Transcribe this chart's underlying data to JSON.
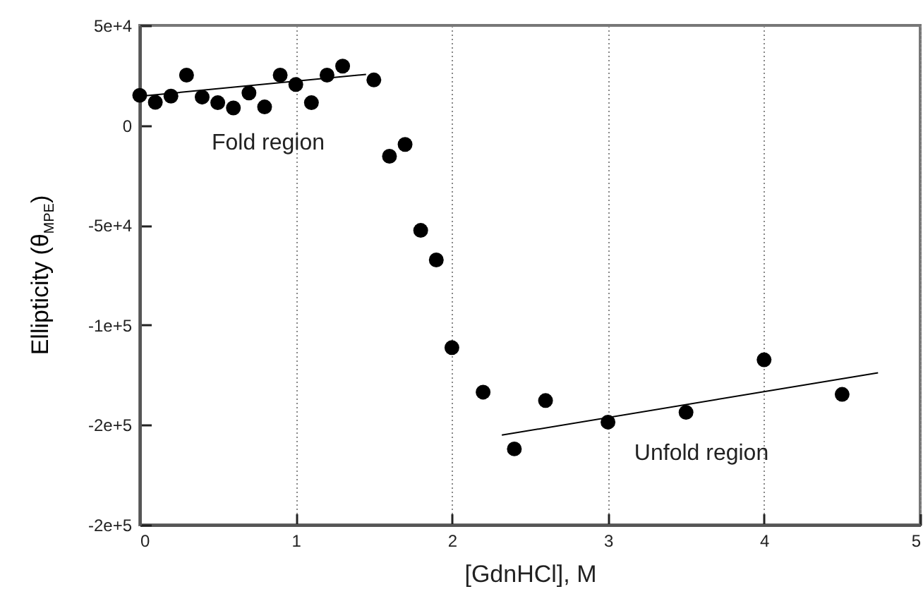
{
  "chart_data": {
    "type": "scatter",
    "xlabel": "[GdnHCl], M",
    "ylabel": "Ellipticity (θ$_{MPE}$)",
    "xlim": [
      0,
      5
    ],
    "xticks": [
      0,
      1,
      2,
      3,
      4,
      5
    ],
    "ylim": [
      -200000,
      50000
    ],
    "yticks": [
      {
        "value": 50000,
        "label": "5e+4"
      },
      {
        "value": 0,
        "label": "0"
      },
      {
        "value": -50000,
        "label": "-5e+4"
      },
      {
        "value": -100000,
        "label": "-1e+5"
      },
      {
        "value": -150000,
        "label": "-2e+5"
      },
      {
        "value": -200000,
        "label": "-2e+5"
      }
    ],
    "grid": "x",
    "marker": "circle",
    "series": [
      {
        "color": "#000000",
        "x": [
          0,
          0.1,
          0.2,
          0.3,
          0.4,
          0.5,
          0.6,
          0.7,
          0.8,
          0.9,
          1.0,
          1.1,
          1.2,
          1.3,
          1.5,
          1.6,
          1.7,
          1.8,
          1.9,
          2.0,
          2.2,
          2.4,
          2.6,
          3.0,
          3.5,
          4.0,
          4.5
        ],
        "values": [
          15000,
          11500,
          14600,
          25100,
          14100,
          11300,
          8700,
          16200,
          9200,
          25100,
          20400,
          11300,
          25100,
          29600,
          22700,
          -15500,
          -9600,
          -52600,
          -67400,
          -111300,
          -133600,
          -162000,
          -137800,
          -148600,
          -143700,
          -117400,
          -134700
        ]
      },
      {
        "type": "line",
        "color": "#000000",
        "line_style": "solid",
        "marker": "none",
        "x": [
          0,
          1.45
        ],
        "values": [
          14500,
          25500
        ]
      },
      {
        "type": "line",
        "color": "#000000",
        "line_style": "solid",
        "marker": "none",
        "x": [
          2.32,
          4.73
        ],
        "values": [
          -155100,
          -123900
        ]
      }
    ],
    "annotations": [
      "Fold region",
      "Unfold region"
    ]
  }
}
